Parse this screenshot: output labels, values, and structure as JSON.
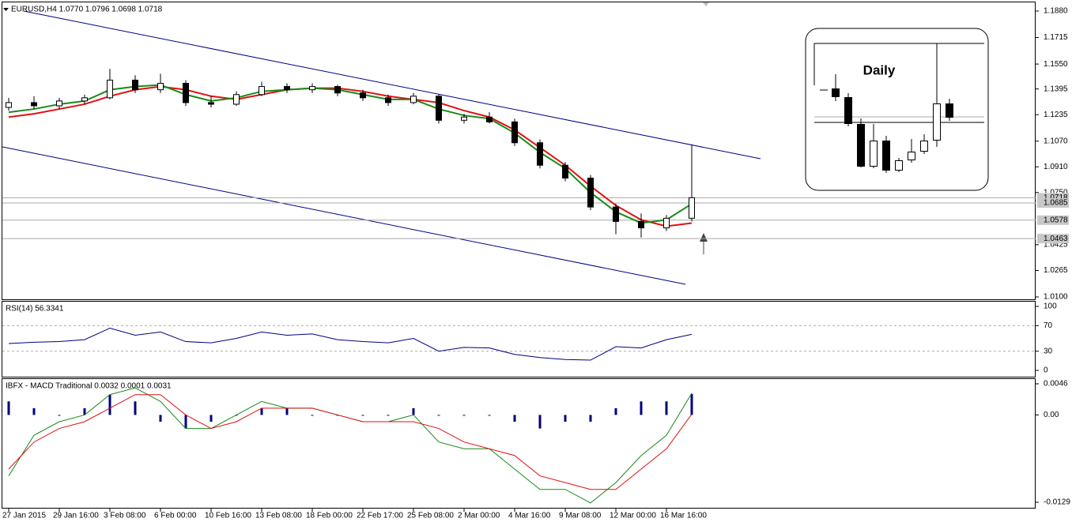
{
  "chart_data": [
    {
      "type": "candlestick",
      "title": "EURUSD,H4 1.0770 1.0796 1.0698 1.0718",
      "annotation": "Daily",
      "categories": [
        "27 Jan 2015",
        null,
        "29 Jan 16:00",
        null,
        "3 Feb 08:00",
        null,
        "6 Feb 00:00",
        null,
        "10 Feb 16:00",
        null,
        "13 Feb 08:00",
        null,
        "18 Feb 00:00",
        null,
        "22 Feb 17:00",
        null,
        "25 Feb 08:00",
        null,
        "2 Mar 00:00",
        null,
        "4 Mar 16:00",
        null,
        "9 Mar 08:00",
        null,
        "12 Mar 00:00",
        null,
        "16 Mar 16:00",
        null
      ],
      "open": [
        1.128,
        1.131,
        1.129,
        1.132,
        1.134,
        1.145,
        1.139,
        1.143,
        1.131,
        1.13,
        1.136,
        1.141,
        1.139,
        1.141,
        1.137,
        1.134,
        1.131,
        1.135,
        1.12,
        1.122,
        1.119,
        1.106,
        1.092,
        1.084,
        1.066,
        1.057,
        1.053,
        1.059
      ],
      "high": [
        1.134,
        1.135,
        1.134,
        1.136,
        1.152,
        1.148,
        1.149,
        1.145,
        1.135,
        1.138,
        1.144,
        1.143,
        1.143,
        1.142,
        1.139,
        1.136,
        1.137,
        1.136,
        1.124,
        1.125,
        1.121,
        1.108,
        1.094,
        1.086,
        1.068,
        1.062,
        1.061,
        1.105
      ],
      "low": [
        1.126,
        1.127,
        1.127,
        1.13,
        1.133,
        1.137,
        1.137,
        1.129,
        1.128,
        1.129,
        1.135,
        1.137,
        1.137,
        1.135,
        1.132,
        1.129,
        1.13,
        1.118,
        1.118,
        1.118,
        1.104,
        1.09,
        1.082,
        1.064,
        1.049,
        1.047,
        1.051,
        1.057
      ],
      "close": [
        1.131,
        1.129,
        1.132,
        1.134,
        1.145,
        1.139,
        1.143,
        1.131,
        1.13,
        1.136,
        1.141,
        1.139,
        1.141,
        1.137,
        1.134,
        1.131,
        1.135,
        1.12,
        1.122,
        1.119,
        1.106,
        1.092,
        1.084,
        1.066,
        1.057,
        1.053,
        1.059,
        1.0718
      ],
      "series": [
        {
          "color": "#e01010",
          "values": [
            1.122,
            1.124,
            1.127,
            1.13,
            1.135,
            1.139,
            1.141,
            1.139,
            1.135,
            1.133,
            1.136,
            1.139,
            1.14,
            1.14,
            1.138,
            1.135,
            1.133,
            1.131,
            1.126,
            1.122,
            1.114,
            1.103,
            1.092,
            1.079,
            1.067,
            1.058,
            1.054,
            1.056
          ]
        },
        {
          "color": "#1a8a1a",
          "values": [
            1.125,
            1.127,
            1.13,
            1.132,
            1.139,
            1.141,
            1.142,
            1.136,
            1.132,
            1.134,
            1.138,
            1.139,
            1.14,
            1.139,
            1.136,
            1.133,
            1.133,
            1.127,
            1.123,
            1.121,
            1.112,
            1.1,
            1.09,
            1.075,
            1.063,
            1.056,
            1.058,
            1.068
          ]
        }
      ],
      "levels": [
        1.0718,
        1.0685,
        1.0578,
        1.0463
      ],
      "ylim": [
        1.01,
        1.188
      ],
      "yticks": [
        {
          "value": 1.188,
          "label": "1.1880"
        },
        1.1715,
        {
          "value": 1.155,
          "label": "1.1550"
        },
        1.1395,
        1.1235,
        {
          "value": 1.107,
          "label": "1.1070"
        },
        {
          "value": 1.091,
          "label": "1.0910"
        },
        {
          "value": 1.075,
          "label": "1.0750"
        },
        1.0425,
        1.0265,
        {
          "value": 1.01,
          "label": "1.0100"
        }
      ]
    },
    {
      "type": "line",
      "title": "RSI(14) 56.3341",
      "series": [
        {
          "color": "#000080",
          "values": [
            42,
            44,
            45,
            48,
            66,
            55,
            60,
            45,
            43,
            50,
            60,
            55,
            57,
            48,
            45,
            43,
            50,
            30,
            36,
            35,
            25,
            20,
            17,
            16,
            37,
            35,
            48,
            56.3341
          ]
        }
      ],
      "ylim": [
        0,
        100
      ],
      "yticks": [
        100,
        70,
        30,
        0
      ]
    },
    {
      "type": "combo",
      "title": "IBFX - MACD Traditional 0.0032 0.0001 0.0031",
      "series": [
        {
          "kind": "bar",
          "color": "#000080",
          "values": [
            0.002,
            0.001,
            0.0,
            0.001,
            0.003,
            0.002,
            -0.001,
            -0.002,
            -0.001,
            0.0,
            0.001,
            0.001,
            0.0,
            0.0,
            0.0,
            0.0,
            0.001,
            0.0,
            0.0,
            0.0,
            -0.001,
            -0.002,
            -0.001,
            -0.001,
            0.001,
            0.002,
            0.002,
            0.0031
          ]
        },
        {
          "kind": "line",
          "color": "#1a8a1a",
          "values": [
            -0.009,
            -0.003,
            -0.001,
            0.0,
            0.003,
            0.004,
            0.002,
            -0.002,
            -0.002,
            0.0,
            0.002,
            0.001,
            0.001,
            0.0,
            -0.001,
            -0.001,
            0.0,
            -0.004,
            -0.005,
            -0.005,
            -0.008,
            -0.011,
            -0.011,
            -0.013,
            -0.01,
            -0.006,
            -0.003,
            0.0032
          ]
        },
        {
          "kind": "line",
          "color": "#e01010",
          "values": [
            -0.008,
            -0.004,
            -0.002,
            -0.001,
            0.001,
            0.003,
            0.003,
            0.0,
            -0.002,
            -0.001,
            0.001,
            0.001,
            0.001,
            0.0,
            -0.001,
            -0.001,
            -0.001,
            -0.002,
            -0.004,
            -0.005,
            -0.006,
            -0.009,
            -0.01,
            -0.011,
            -0.011,
            -0.008,
            -0.005,
            0.0001
          ]
        }
      ],
      "ylim": [
        -0.0129,
        0.0046
      ],
      "yticks": [
        0.0046,
        {
          "value": 0,
          "label": "0.00"
        },
        -0.0129
      ]
    }
  ]
}
